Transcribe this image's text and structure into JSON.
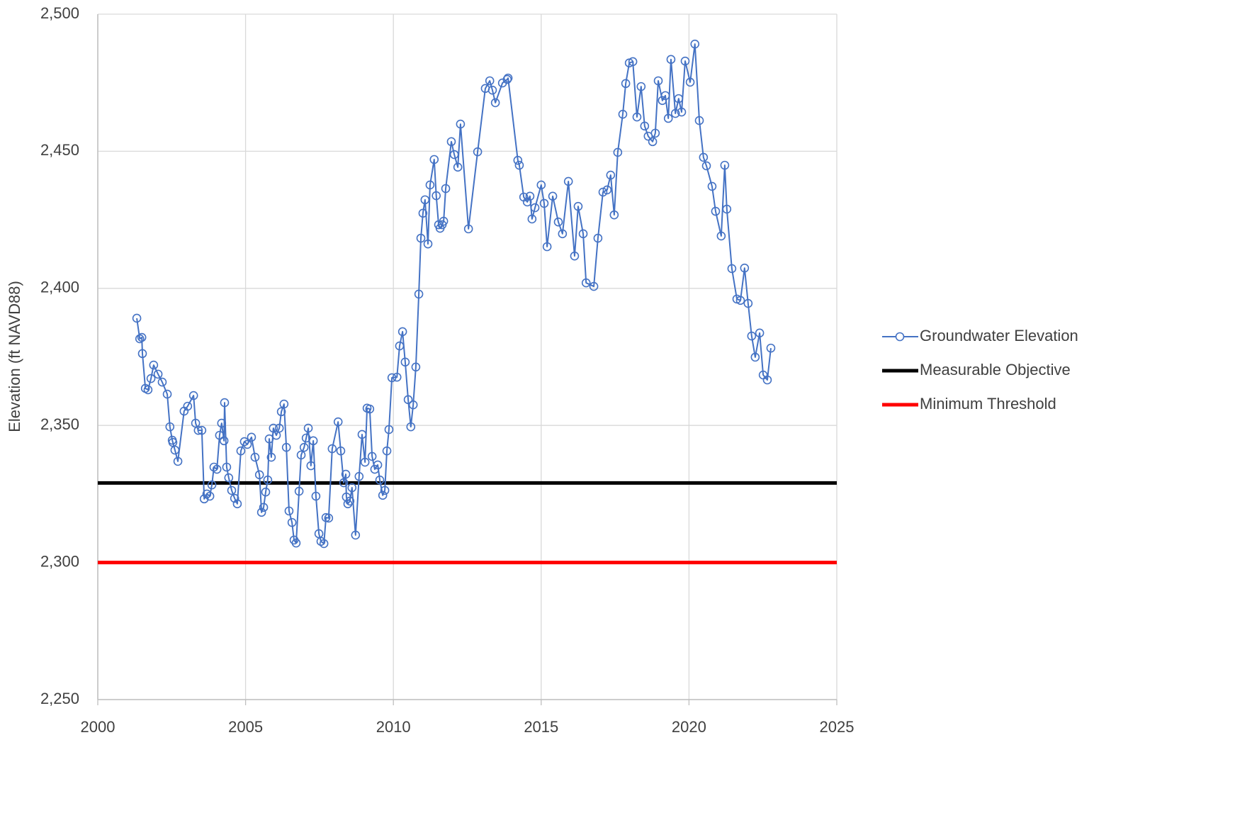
{
  "chart_data": {
    "type": "line",
    "ylabel": "Elevation (ft NAVD88)",
    "xlim": [
      2000,
      2025
    ],
    "xticks": [
      2000,
      2005,
      2010,
      2015,
      2020,
      2025
    ],
    "ylim": [
      2250,
      2500
    ],
    "yticks": [
      {
        "value": 2250,
        "label": "2,250"
      },
      {
        "value": 2300,
        "label": "2,300"
      },
      {
        "value": 2350,
        "label": "2,350"
      },
      {
        "value": 2400,
        "label": "2,400"
      },
      {
        "value": 2450,
        "label": "2,450"
      },
      {
        "value": 2500,
        "label": "2,500"
      }
    ],
    "grid": true,
    "legend": "right",
    "series": [
      {
        "name": "Groundwater Elevation",
        "color": "#4472c4",
        "marker": "circle",
        "x": [
          2001.32,
          2001.42,
          2001.49,
          2001.51,
          2001.61,
          2001.7,
          2001.8,
          2001.89,
          2002.04,
          2002.18,
          2002.35,
          2002.44,
          2002.52,
          2002.54,
          2002.61,
          2002.71,
          2002.92,
          2003.04,
          2003.24,
          2003.31,
          2003.4,
          2003.52,
          2003.6,
          2003.69,
          2003.79,
          2003.86,
          2003.93,
          2004.03,
          2004.12,
          2004.19,
          2004.27,
          2004.29,
          2004.36,
          2004.43,
          2004.53,
          2004.63,
          2004.72,
          2004.84,
          2004.96,
          2005.06,
          2005.2,
          2005.32,
          2005.47,
          2005.54,
          2005.61,
          2005.68,
          2005.75,
          2005.8,
          2005.87,
          2005.94,
          2006.04,
          2006.14,
          2006.21,
          2006.3,
          2006.38,
          2006.47,
          2006.57,
          2006.64,
          2006.71,
          2006.81,
          2006.88,
          2006.98,
          2007.05,
          2007.12,
          2007.21,
          2007.29,
          2007.38,
          2007.48,
          2007.55,
          2007.65,
          2007.72,
          2007.81,
          2007.93,
          2008.13,
          2008.22,
          2008.32,
          2008.39,
          2008.41,
          2008.46,
          2008.53,
          2008.6,
          2008.72,
          2008.84,
          2008.94,
          2009.04,
          2009.11,
          2009.2,
          2009.28,
          2009.37,
          2009.47,
          2009.54,
          2009.64,
          2009.71,
          2009.78,
          2009.85,
          2009.95,
          2010.12,
          2010.21,
          2010.31,
          2010.4,
          2010.5,
          2010.59,
          2010.67,
          2010.76,
          2010.86,
          2010.93,
          2011.0,
          2011.07,
          2011.17,
          2011.24,
          2011.38,
          2011.45,
          2011.53,
          2011.58,
          2011.65,
          2011.7,
          2011.77,
          2011.96,
          2012.06,
          2012.18,
          2012.27,
          2012.54,
          2012.85,
          2013.11,
          2013.26,
          2013.35,
          2013.45,
          2013.69,
          2013.85,
          2013.88,
          2014.21,
          2014.26,
          2014.41,
          2014.53,
          2014.62,
          2014.69,
          2014.79,
          2015.0,
          2015.1,
          2015.2,
          2015.39,
          2015.58,
          2015.72,
          2015.92,
          2016.13,
          2016.25,
          2016.42,
          2016.52,
          2016.78,
          2016.92,
          2017.09,
          2017.23,
          2017.35,
          2017.47,
          2017.59,
          2017.76,
          2017.86,
          2017.98,
          2018.1,
          2018.24,
          2018.38,
          2018.5,
          2018.62,
          2018.77,
          2018.86,
          2018.96,
          2019.1,
          2019.2,
          2019.3,
          2019.39,
          2019.54,
          2019.65,
          2019.75,
          2019.87,
          2020.04,
          2020.2,
          2020.35,
          2020.49,
          2020.59,
          2020.78,
          2020.9,
          2021.09,
          2021.21,
          2021.28,
          2021.45,
          2021.62,
          2021.74,
          2021.88,
          2022.0,
          2022.12,
          2022.24,
          2022.39,
          2022.51,
          2022.65,
          2022.77
        ],
        "values": [
          2389.1,
          2381.6,
          2382.1,
          2376.2,
          2363.5,
          2363.0,
          2367.1,
          2372.0,
          2368.7,
          2365.8,
          2361.4,
          2349.5,
          2344.6,
          2343.8,
          2341.0,
          2336.9,
          2355.2,
          2357.0,
          2360.9,
          2350.8,
          2348.2,
          2348.2,
          2323.2,
          2325.0,
          2324.2,
          2328.3,
          2334.8,
          2334.0,
          2346.4,
          2350.8,
          2344.4,
          2358.3,
          2334.8,
          2330.9,
          2326.3,
          2323.4,
          2321.4,
          2340.7,
          2344.1,
          2343.1,
          2345.7,
          2338.4,
          2332.0,
          2318.3,
          2320.1,
          2325.7,
          2330.1,
          2345.1,
          2338.4,
          2349.0,
          2346.4,
          2349.0,
          2355.0,
          2357.8,
          2342.0,
          2318.8,
          2314.6,
          2308.2,
          2307.1,
          2326.0,
          2339.2,
          2342.0,
          2345.4,
          2349.0,
          2335.3,
          2344.4,
          2324.2,
          2310.5,
          2307.7,
          2306.9,
          2316.4,
          2316.2,
          2341.5,
          2351.3,
          2340.7,
          2329.1,
          2332.2,
          2323.9,
          2321.4,
          2322.4,
          2327.3,
          2310.0,
          2331.4,
          2346.7,
          2336.6,
          2356.3,
          2356.0,
          2338.7,
          2334.0,
          2335.6,
          2330.1,
          2324.5,
          2326.3,
          2340.7,
          2348.5,
          2367.4,
          2367.6,
          2379.0,
          2384.2,
          2373.1,
          2359.4,
          2349.5,
          2357.5,
          2371.3,
          2397.9,
          2418.3,
          2427.4,
          2432.3,
          2416.2,
          2437.7,
          2447.0,
          2433.8,
          2423.2,
          2421.9,
          2423.2,
          2424.5,
          2436.4,
          2453.5,
          2448.8,
          2444.2,
          2459.9,
          2421.7,
          2449.8,
          2472.9,
          2475.7,
          2472.3,
          2467.7,
          2474.9,
          2476.2,
          2476.7,
          2446.7,
          2444.9,
          2433.3,
          2431.5,
          2433.6,
          2425.3,
          2429.4,
          2437.7,
          2431.0,
          2415.2,
          2433.6,
          2424.2,
          2419.9,
          2439.0,
          2411.8,
          2429.9,
          2419.9,
          2402.0,
          2400.7,
          2418.3,
          2435.1,
          2435.9,
          2441.3,
          2426.8,
          2449.6,
          2463.5,
          2474.7,
          2482.2,
          2482.7,
          2462.5,
          2473.6,
          2459.2,
          2455.5,
          2453.5,
          2456.6,
          2475.7,
          2468.5,
          2470.3,
          2462.0,
          2483.5,
          2463.8,
          2469.2,
          2464.3,
          2482.9,
          2475.2,
          2489.1,
          2461.2,
          2447.8,
          2444.7,
          2437.2,
          2428.1,
          2419.1,
          2444.9,
          2428.9,
          2407.2,
          2396.1,
          2395.6,
          2407.4,
          2394.5,
          2382.6,
          2374.9,
          2383.7,
          2368.4,
          2366.6,
          2378.2
        ]
      },
      {
        "name": "Measurable Objective",
        "color": "#000000",
        "x": [
          2000,
          2025
        ],
        "values": [
          2329,
          2329
        ]
      },
      {
        "name": "Minimum Threshold",
        "color": "#ff0000",
        "x": [
          2000,
          2025
        ],
        "values": [
          2300,
          2300
        ]
      }
    ]
  }
}
